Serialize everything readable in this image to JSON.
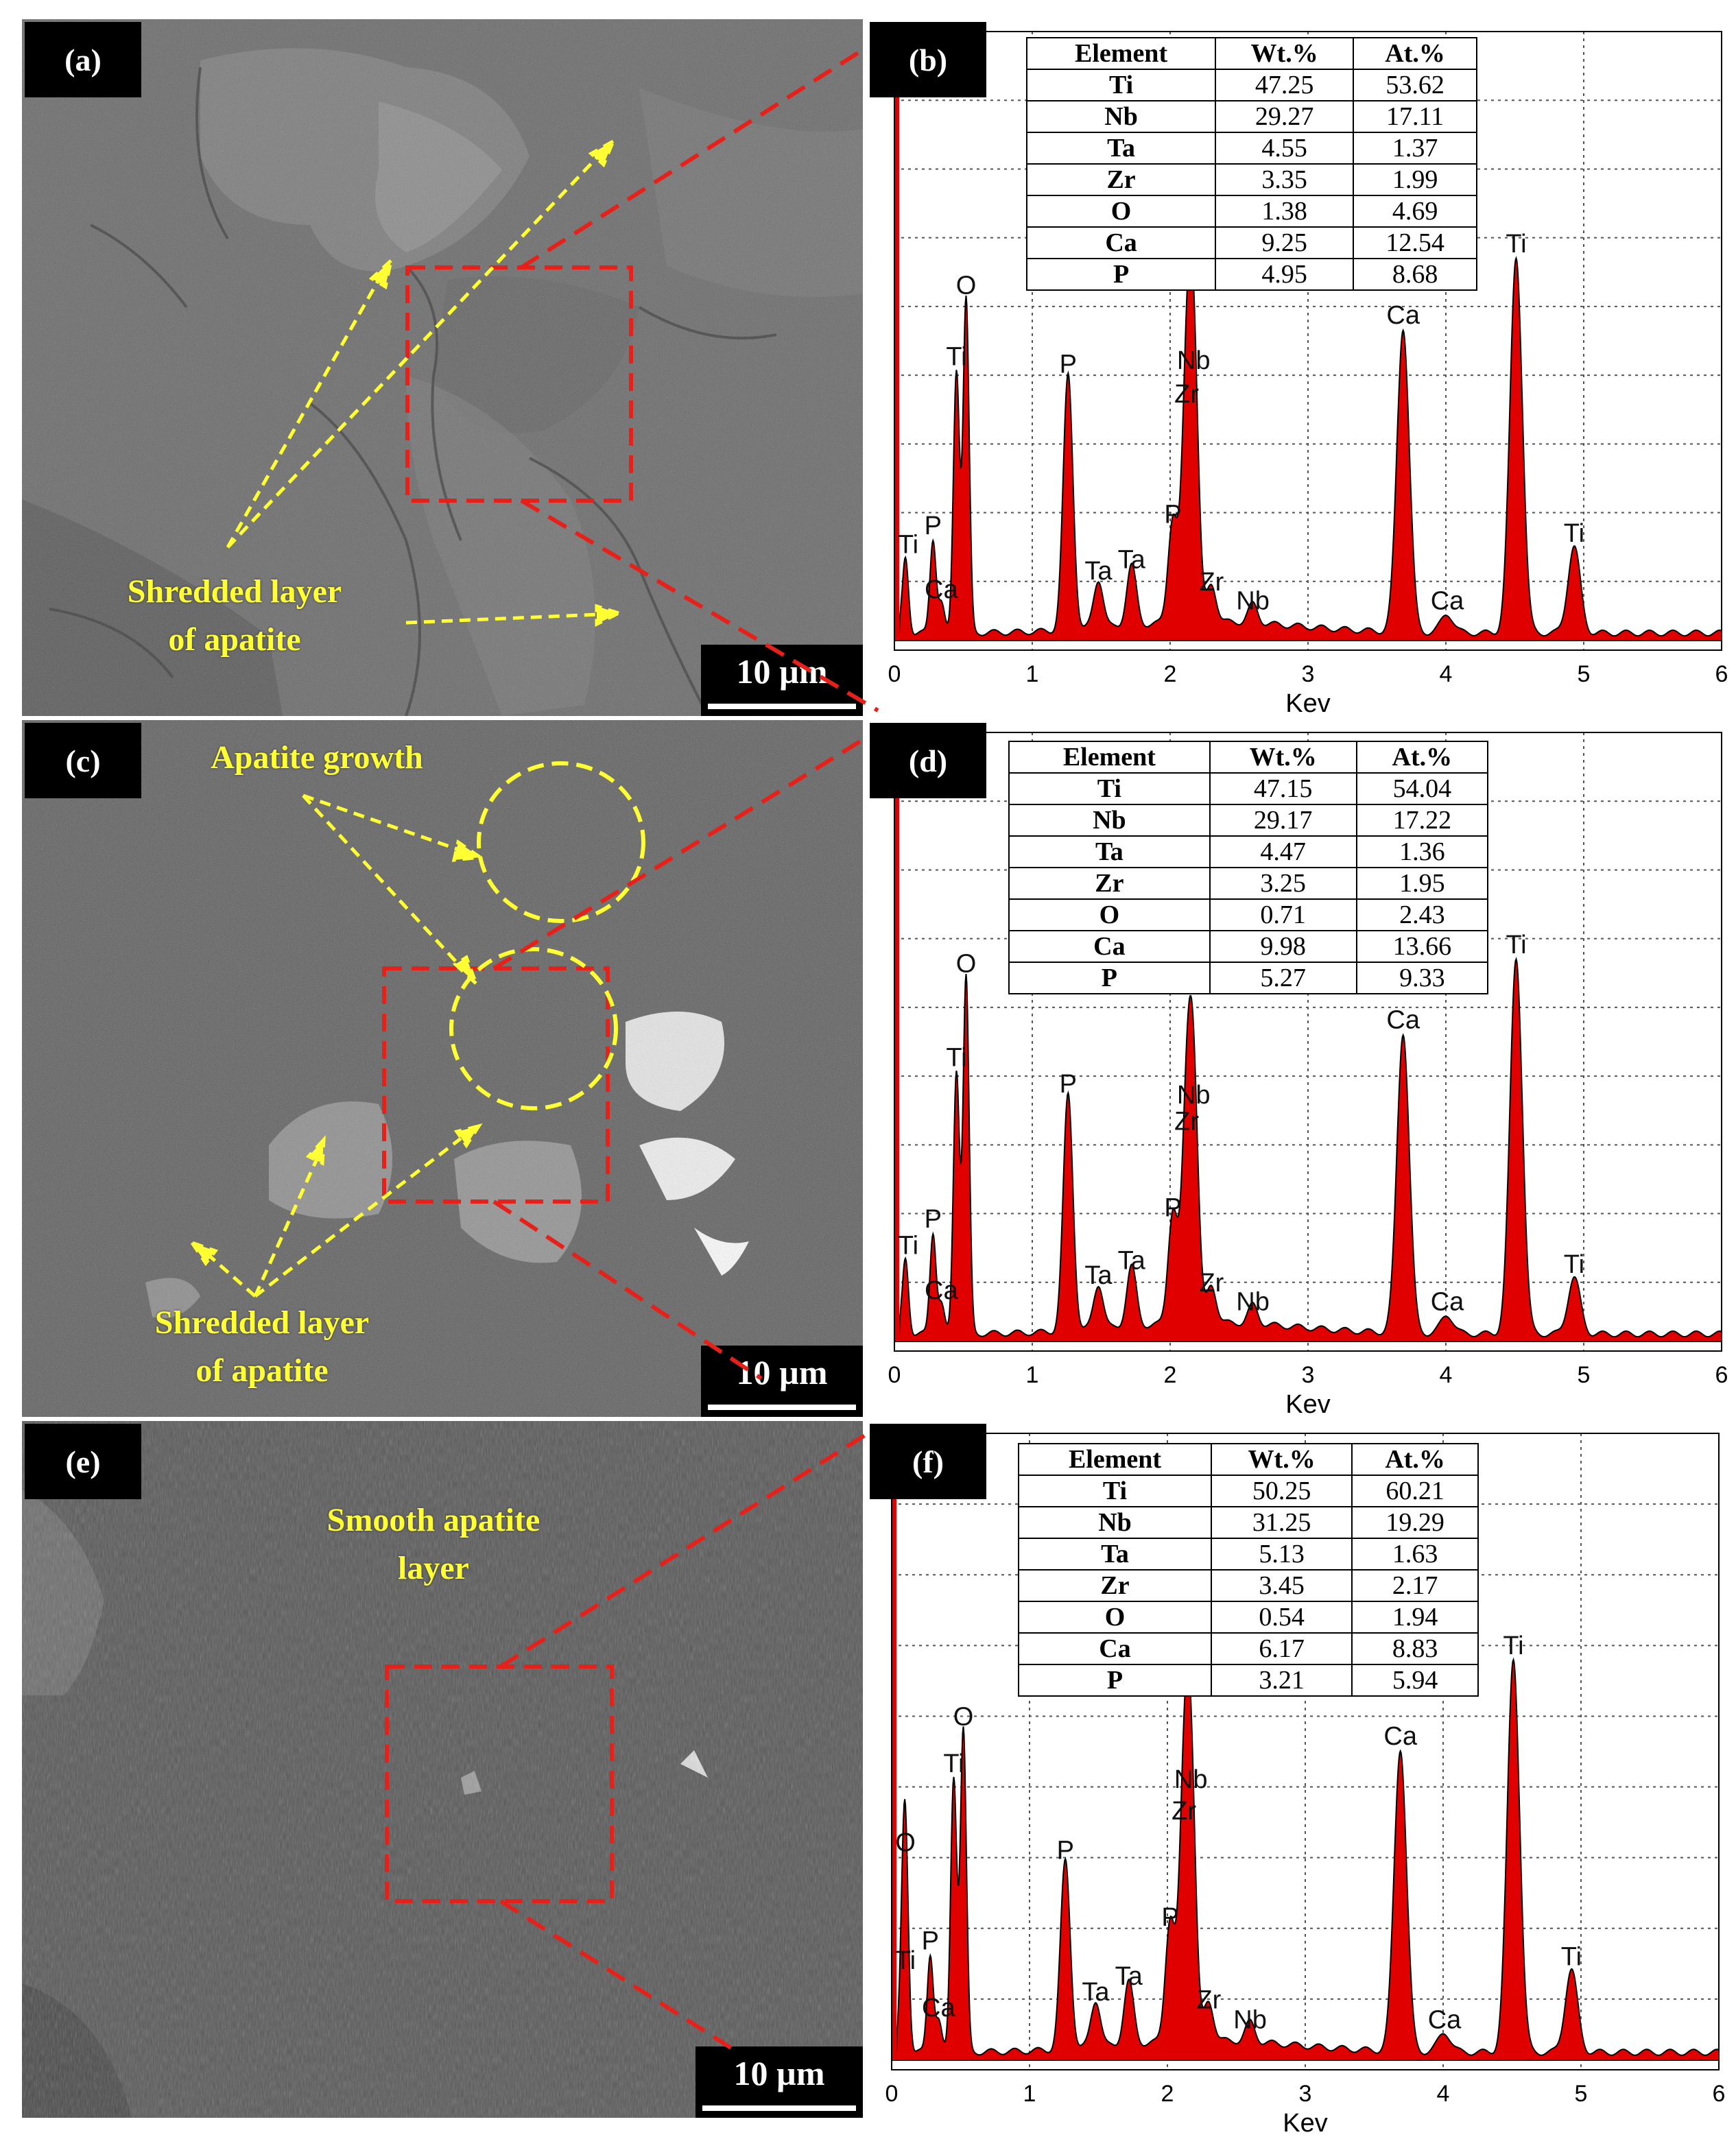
{
  "figure": {
    "units": {
      "scale": "10 µm",
      "x_axis": "Kev"
    },
    "table_headers": {
      "element": "Element",
      "wt": "Wt.%",
      "at": "At.%"
    },
    "panels": {
      "a": {
        "label": "(a)",
        "annotation_lines": [
          "Shredded layer",
          "of apatite"
        ]
      },
      "b": {
        "label": "(b)",
        "table": [
          {
            "element": "Ti",
            "wt": "47.25",
            "at": "53.62"
          },
          {
            "element": "Nb",
            "wt": "29.27",
            "at": "17.11"
          },
          {
            "element": "Ta",
            "wt": "4.55",
            "at": "1.37"
          },
          {
            "element": "Zr",
            "wt": "3.35",
            "at": "1.99"
          },
          {
            "element": "O",
            "wt": "1.38",
            "at": "4.69"
          },
          {
            "element": "Ca",
            "wt": "9.25",
            "at": "12.54"
          },
          {
            "element": "P",
            "wt": "4.95",
            "at": "8.68"
          }
        ]
      },
      "c": {
        "label": "(c)",
        "annotation_top": "Apatite growth",
        "annotation_lines": [
          "Shredded layer",
          "of apatite"
        ]
      },
      "d": {
        "label": "(d)",
        "table": [
          {
            "element": "Ti",
            "wt": "47.15",
            "at": "54.04"
          },
          {
            "element": "Nb",
            "wt": "29.17",
            "at": "17.22"
          },
          {
            "element": "Ta",
            "wt": "4.47",
            "at": "1.36"
          },
          {
            "element": "Zr",
            "wt": "3.25",
            "at": "1.95"
          },
          {
            "element": "O",
            "wt": "0.71",
            "at": "2.43"
          },
          {
            "element": "Ca",
            "wt": "9.98",
            "at": "13.66"
          },
          {
            "element": "P",
            "wt": "5.27",
            "at": "9.33"
          }
        ]
      },
      "e": {
        "label": "(e)",
        "annotation_lines": [
          "Smooth apatite",
          "layer"
        ]
      },
      "f": {
        "label": "(f)",
        "table": [
          {
            "element": "Ti",
            "wt": "50.25",
            "at": "60.21"
          },
          {
            "element": "Nb",
            "wt": "31.25",
            "at": "19.29"
          },
          {
            "element": "Ta",
            "wt": "5.13",
            "at": "1.63"
          },
          {
            "element": "Zr",
            "wt": "3.45",
            "at": "2.17"
          },
          {
            "element": "O",
            "wt": "0.54",
            "at": "1.94"
          },
          {
            "element": "Ca",
            "wt": "6.17",
            "at": "8.83"
          },
          {
            "element": "P",
            "wt": "3.21",
            "at": "5.94"
          }
        ]
      }
    },
    "colors": {
      "spectrum_fill": "#e00000",
      "dashed_box": "#e8201a",
      "annotation_text": "#ffff33"
    }
  },
  "chart_data": [
    {
      "panel": "b",
      "type": "area",
      "xlabel": "Kev",
      "xlim": [
        0,
        6
      ],
      "xticks": [
        "0",
        "1",
        "2",
        "3",
        "4",
        "5",
        "6"
      ],
      "grid": true,
      "y_scale": "relative intensity (no axis values shown)",
      "peaks": [
        {
          "label": "O",
          "x": 0.52,
          "height": 0.89
        },
        {
          "label": "Ti",
          "x": 0.45,
          "height": 0.7
        },
        {
          "label": "Ti",
          "x": 0.08,
          "height": 0.2
        },
        {
          "label": "P",
          "x": 0.28,
          "height": 0.25
        },
        {
          "label": "Ca",
          "x": 0.34,
          "height": 0.08
        },
        {
          "label": "P",
          "x": 1.26,
          "height": 0.68
        },
        {
          "label": "Ta",
          "x": 1.48,
          "height": 0.13
        },
        {
          "label": "Ta",
          "x": 1.72,
          "height": 0.16
        },
        {
          "label": "P",
          "x": 2.02,
          "height": 0.28
        },
        {
          "label": "Nb",
          "x": 2.17,
          "height": 0.69
        },
        {
          "label": "Zr",
          "x": 2.12,
          "height": 0.6
        },
        {
          "label": "Zr",
          "x": 2.3,
          "height": 0.1
        },
        {
          "label": "Nb",
          "x": 2.6,
          "height": 0.05
        },
        {
          "label": "Ca",
          "x": 3.69,
          "height": 0.81
        },
        {
          "label": "Ca",
          "x": 4.01,
          "height": 0.05
        },
        {
          "label": "Ti",
          "x": 4.51,
          "height": 1.0
        },
        {
          "label": "Ti",
          "x": 4.93,
          "height": 0.23
        }
      ]
    },
    {
      "panel": "d",
      "type": "area",
      "xlabel": "Kev",
      "xlim": [
        0,
        6
      ],
      "xticks": [
        "0",
        "1",
        "2",
        "3",
        "4",
        "5",
        "6"
      ],
      "grid": true,
      "y_scale": "relative intensity (no axis values shown)",
      "peaks": [
        {
          "label": "O",
          "x": 0.52,
          "height": 0.95
        },
        {
          "label": "Ti",
          "x": 0.45,
          "height": 0.7
        },
        {
          "label": "Ti",
          "x": 0.08,
          "height": 0.2
        },
        {
          "label": "P",
          "x": 0.28,
          "height": 0.27
        },
        {
          "label": "Ca",
          "x": 0.34,
          "height": 0.08
        },
        {
          "label": "P",
          "x": 1.26,
          "height": 0.63
        },
        {
          "label": "Ta",
          "x": 1.48,
          "height": 0.12
        },
        {
          "label": "Ta",
          "x": 1.72,
          "height": 0.16
        },
        {
          "label": "P",
          "x": 2.02,
          "height": 0.3
        },
        {
          "label": "Nb",
          "x": 2.17,
          "height": 0.6
        },
        {
          "label": "Zr",
          "x": 2.12,
          "height": 0.53
        },
        {
          "label": "Zr",
          "x": 2.3,
          "height": 0.1
        },
        {
          "label": "Nb",
          "x": 2.6,
          "height": 0.05
        },
        {
          "label": "Ca",
          "x": 3.69,
          "height": 0.8
        },
        {
          "label": "Ca",
          "x": 4.01,
          "height": 0.05
        },
        {
          "label": "Ti",
          "x": 4.51,
          "height": 1.0
        },
        {
          "label": "Ti",
          "x": 4.93,
          "height": 0.15
        }
      ]
    },
    {
      "panel": "f",
      "type": "area",
      "xlabel": "Kev",
      "xlim": [
        0,
        6
      ],
      "xticks": [
        "0",
        "1",
        "2",
        "3",
        "4",
        "5",
        "6"
      ],
      "grid": true,
      "y_scale": "relative intensity (no axis values shown)",
      "peaks": [
        {
          "label": "O",
          "x": 0.52,
          "height": 0.82
        },
        {
          "label": "Ti",
          "x": 0.45,
          "height": 0.7
        },
        {
          "label": "O",
          "x": 0.1,
          "height": 0.5
        },
        {
          "label": "Ti",
          "x": 0.08,
          "height": 0.2
        },
        {
          "label": "P",
          "x": 0.28,
          "height": 0.25
        },
        {
          "label": "Ca",
          "x": 0.34,
          "height": 0.08
        },
        {
          "label": "P",
          "x": 1.26,
          "height": 0.48
        },
        {
          "label": "Ta",
          "x": 1.48,
          "height": 0.12
        },
        {
          "label": "Ta",
          "x": 1.72,
          "height": 0.16
        },
        {
          "label": "P",
          "x": 2.02,
          "height": 0.31
        },
        {
          "label": "Nb",
          "x": 2.17,
          "height": 0.66
        },
        {
          "label": "Zr",
          "x": 2.12,
          "height": 0.58
        },
        {
          "label": "Zr",
          "x": 2.3,
          "height": 0.1
        },
        {
          "label": "Nb",
          "x": 2.6,
          "height": 0.05
        },
        {
          "label": "Ca",
          "x": 3.69,
          "height": 0.77
        },
        {
          "label": "Ca",
          "x": 4.01,
          "height": 0.05
        },
        {
          "label": "Ti",
          "x": 4.51,
          "height": 1.0
        },
        {
          "label": "Ti",
          "x": 4.93,
          "height": 0.21
        }
      ]
    }
  ]
}
